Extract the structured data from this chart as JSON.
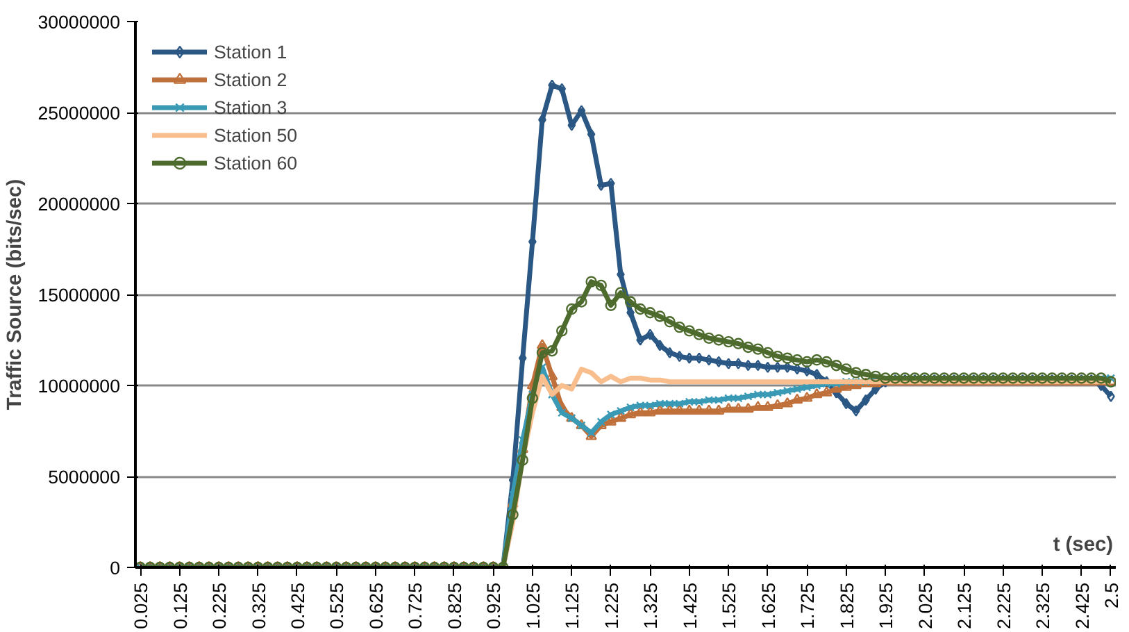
{
  "chart_data": {
    "type": "line",
    "xlabel": "t (sec)",
    "ylabel": "Traffic Source (bits/sec)",
    "categories": [
      "0.025",
      null,
      null,
      null,
      "0.125",
      null,
      null,
      null,
      "0.225",
      null,
      null,
      null,
      "0.325",
      null,
      null,
      null,
      "0.425",
      null,
      null,
      null,
      "0.525",
      null,
      null,
      null,
      "0.625",
      null,
      null,
      null,
      "0.725",
      null,
      null,
      null,
      "0.825",
      null,
      null,
      null,
      "0.925",
      null,
      null,
      null,
      "1.025",
      null,
      null,
      null,
      "1.125",
      null,
      null,
      null,
      "1.225",
      null,
      null,
      null,
      "1.325",
      null,
      null,
      null,
      "1.425",
      null,
      null,
      null,
      "1.525",
      null,
      null,
      null,
      "1.625",
      null,
      null,
      null,
      "1.725",
      null,
      null,
      null,
      "1.825",
      null,
      null,
      null,
      "1.925",
      null,
      null,
      null,
      "2.025",
      null,
      null,
      null,
      "2.125",
      null,
      null,
      null,
      "2.225",
      null,
      null,
      null,
      "2.325",
      null,
      null,
      null,
      "2.425",
      null,
      null,
      "2.5"
    ],
    "ylim": [
      0,
      30000000
    ],
    "yticks": [
      0,
      5000000,
      10000000,
      15000000,
      20000000,
      25000000,
      30000000
    ],
    "grid": "y",
    "legend": "top left",
    "series": [
      {
        "name": "Station 1",
        "color": "#2a5783",
        "marker": "diamond",
        "values": [
          0,
          0,
          0,
          0,
          0,
          0,
          0,
          0,
          0,
          0,
          0,
          0,
          0,
          0,
          0,
          0,
          0,
          0,
          0,
          0,
          0,
          0,
          0,
          0,
          0,
          0,
          0,
          0,
          0,
          0,
          0,
          0,
          0,
          0,
          0,
          0,
          0,
          0,
          4800000,
          11500000,
          17900000,
          24600000,
          26500000,
          26300000,
          24300000,
          25100000,
          23800000,
          21000000,
          21100000,
          16100000,
          14000000,
          12500000,
          12800000,
          12200000,
          11800000,
          11600000,
          11500000,
          11500000,
          11400000,
          11300000,
          11200000,
          11200000,
          11100000,
          11100000,
          11000000,
          11000000,
          11000000,
          10900000,
          10800000,
          10600000,
          10200000,
          9600000,
          9000000,
          8600000,
          9200000,
          9800000,
          10200000,
          10300000,
          10300000,
          10300000,
          10300000,
          10300000,
          10300000,
          10300000,
          10300000,
          10300000,
          10300000,
          10300000,
          10300000,
          10300000,
          10300000,
          10300000,
          10300000,
          10300000,
          10300000,
          10300000,
          10300000,
          10300000,
          10000000,
          9400000
        ]
      },
      {
        "name": "Station 2",
        "color": "#c0703a",
        "marker": "triangle",
        "values": [
          0,
          0,
          0,
          0,
          0,
          0,
          0,
          0,
          0,
          0,
          0,
          0,
          0,
          0,
          0,
          0,
          0,
          0,
          0,
          0,
          0,
          0,
          0,
          0,
          0,
          0,
          0,
          0,
          0,
          0,
          0,
          0,
          0,
          0,
          0,
          0,
          0,
          0,
          3500000,
          6500000,
          10000000,
          12200000,
          10500000,
          8800000,
          8200000,
          7800000,
          7200000,
          7800000,
          8000000,
          8200000,
          8400000,
          8500000,
          8500000,
          8600000,
          8600000,
          8600000,
          8600000,
          8600000,
          8600000,
          8600000,
          8700000,
          8700000,
          8700000,
          8800000,
          8800000,
          8900000,
          9000000,
          9200000,
          9300000,
          9500000,
          9600000,
          9800000,
          9900000,
          10000000,
          10100000,
          10100000,
          10200000,
          10200000,
          10200000,
          10200000,
          10200000,
          10200000,
          10200000,
          10200000,
          10200000,
          10200000,
          10200000,
          10200000,
          10200000,
          10200000,
          10200000,
          10200000,
          10200000,
          10200000,
          10200000,
          10200000,
          10200000,
          10200000,
          10200000,
          10200000
        ]
      },
      {
        "name": "Station 3",
        "color": "#3a9ab5",
        "marker": "cross",
        "values": [
          0,
          0,
          0,
          0,
          0,
          0,
          0,
          0,
          0,
          0,
          0,
          0,
          0,
          0,
          0,
          0,
          0,
          0,
          0,
          0,
          0,
          0,
          0,
          0,
          0,
          0,
          0,
          0,
          0,
          0,
          0,
          0,
          0,
          0,
          0,
          0,
          0,
          0,
          4000000,
          7000000,
          9500000,
          11000000,
          9500000,
          8500000,
          8200000,
          7800000,
          7400000,
          8000000,
          8400000,
          8600000,
          8800000,
          8900000,
          8900000,
          9000000,
          9000000,
          9000000,
          9100000,
          9100000,
          9200000,
          9200000,
          9300000,
          9300000,
          9400000,
          9500000,
          9500000,
          9600000,
          9700000,
          9800000,
          9900000,
          10000000,
          10100000,
          10100000,
          10200000,
          10200000,
          10200000,
          10300000,
          10300000,
          10300000,
          10300000,
          10300000,
          10300000,
          10300000,
          10300000,
          10300000,
          10300000,
          10300000,
          10300000,
          10300000,
          10300000,
          10300000,
          10300000,
          10300000,
          10300000,
          10300000,
          10300000,
          10300000,
          10300000,
          10300000,
          10400000,
          10400000
        ]
      },
      {
        "name": "Station 50",
        "color": "#f9be8e",
        "marker": "none",
        "values": [
          null,
          null,
          null,
          null,
          null,
          null,
          null,
          null,
          null,
          null,
          null,
          null,
          null,
          null,
          null,
          null,
          null,
          null,
          null,
          null,
          null,
          null,
          null,
          null,
          null,
          null,
          null,
          null,
          null,
          null,
          null,
          null,
          null,
          null,
          null,
          null,
          null,
          0,
          2500000,
          6000000,
          8500000,
          10500000,
          9500000,
          10000000,
          9800000,
          10900000,
          10700000,
          10200000,
          10500000,
          10200000,
          10400000,
          10400000,
          10300000,
          10300000,
          10200000,
          10200000,
          10200000,
          10200000,
          10200000,
          10200000,
          10200000,
          10200000,
          10200000,
          10200000,
          10200000,
          10200000,
          10200000,
          10200000,
          10200000,
          10200000,
          10200000,
          10200000,
          10200000,
          10200000,
          10200000,
          10200000,
          10200000,
          10200000,
          10200000,
          10200000,
          10200000,
          10200000,
          10200000,
          10200000,
          10200000,
          10200000,
          10200000,
          10200000,
          10200000,
          10200000,
          10200000,
          10200000,
          10200000,
          10200000,
          10200000,
          10200000,
          10200000,
          10200000,
          10200000,
          10200000
        ]
      },
      {
        "name": "Station 60",
        "color": "#4e6b2e",
        "marker": "circle",
        "values": [
          0,
          0,
          0,
          0,
          0,
          0,
          0,
          0,
          0,
          0,
          0,
          0,
          0,
          0,
          0,
          0,
          0,
          0,
          0,
          0,
          0,
          0,
          0,
          0,
          0,
          0,
          0,
          0,
          0,
          0,
          0,
          0,
          0,
          0,
          0,
          0,
          0,
          0,
          2900000,
          5900000,
          9300000,
          11800000,
          11900000,
          13000000,
          14200000,
          14600000,
          15700000,
          15500000,
          14400000,
          15100000,
          14600000,
          14200000,
          14000000,
          13800000,
          13500000,
          13200000,
          13000000,
          12800000,
          12600000,
          12500000,
          12400000,
          12300000,
          12100000,
          12000000,
          11800000,
          11600000,
          11500000,
          11400000,
          11300000,
          11400000,
          11300000,
          11100000,
          10900000,
          10700000,
          10600000,
          10500000,
          10400000,
          10400000,
          10400000,
          10400000,
          10400000,
          10400000,
          10400000,
          10400000,
          10400000,
          10400000,
          10400000,
          10400000,
          10400000,
          10400000,
          10400000,
          10400000,
          10400000,
          10400000,
          10400000,
          10400000,
          10400000,
          10400000,
          10400000,
          10200000
        ]
      }
    ]
  }
}
